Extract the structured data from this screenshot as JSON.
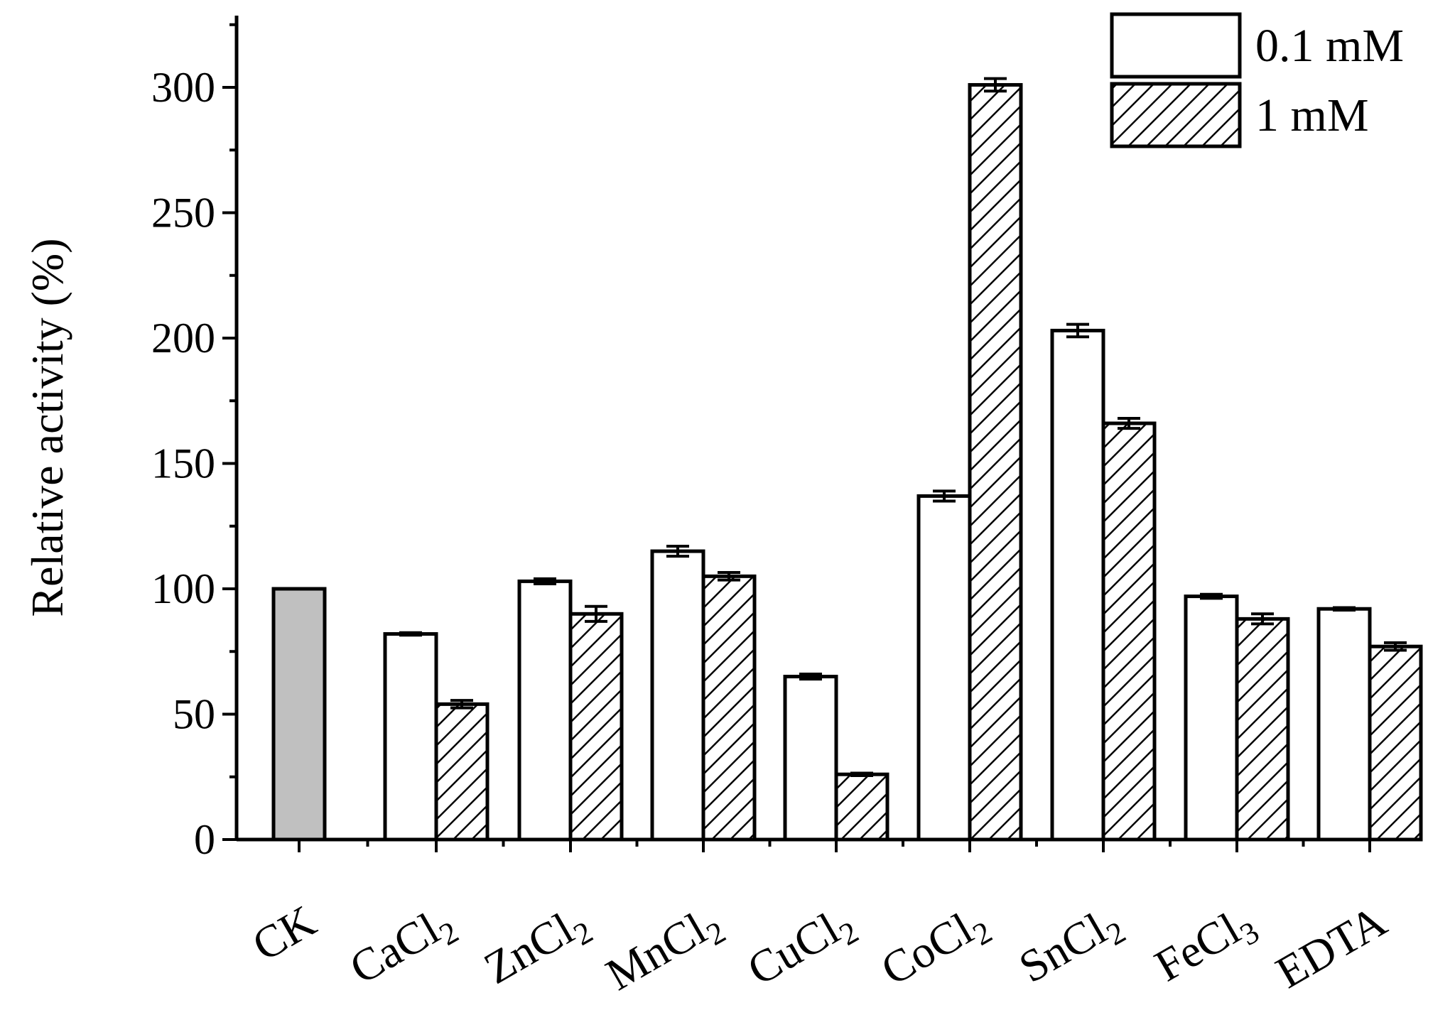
{
  "chart_data": {
    "type": "bar",
    "title": "",
    "xlabel": "",
    "ylabel": "Relative activity (%)",
    "ylim": [
      0,
      325
    ],
    "yticks": [
      0,
      50,
      100,
      150,
      200,
      250,
      300
    ],
    "grid": false,
    "legend_position": "top-right",
    "categories": [
      {
        "base": "CK",
        "sub": ""
      },
      {
        "base": "CaCl",
        "sub": "2"
      },
      {
        "base": "ZnCl",
        "sub": "2"
      },
      {
        "base": "MnCl",
        "sub": "2"
      },
      {
        "base": "CuCl",
        "sub": "2"
      },
      {
        "base": "CoCl",
        "sub": "2"
      },
      {
        "base": "SnCl",
        "sub": "2"
      },
      {
        "base": "FeCl",
        "sub": "3"
      },
      {
        "base": "EDTA",
        "sub": ""
      }
    ],
    "control": {
      "category": "CK",
      "value": 100,
      "color": "#c0c0c0"
    },
    "series": [
      {
        "name": "0.1 mM",
        "pattern": "none",
        "values": [
          null,
          82,
          103,
          115,
          65,
          137,
          203,
          97,
          92
        ],
        "errors": [
          null,
          0.5,
          1,
          2,
          1,
          2,
          2.5,
          0.8,
          0.5
        ]
      },
      {
        "name": "1 mM",
        "pattern": "diagonal-hatch",
        "values": [
          null,
          54,
          90,
          105,
          26,
          301,
          166,
          88,
          77
        ],
        "errors": [
          null,
          1.5,
          3,
          1.5,
          0.5,
          2.5,
          2,
          2,
          1.5
        ]
      }
    ]
  }
}
